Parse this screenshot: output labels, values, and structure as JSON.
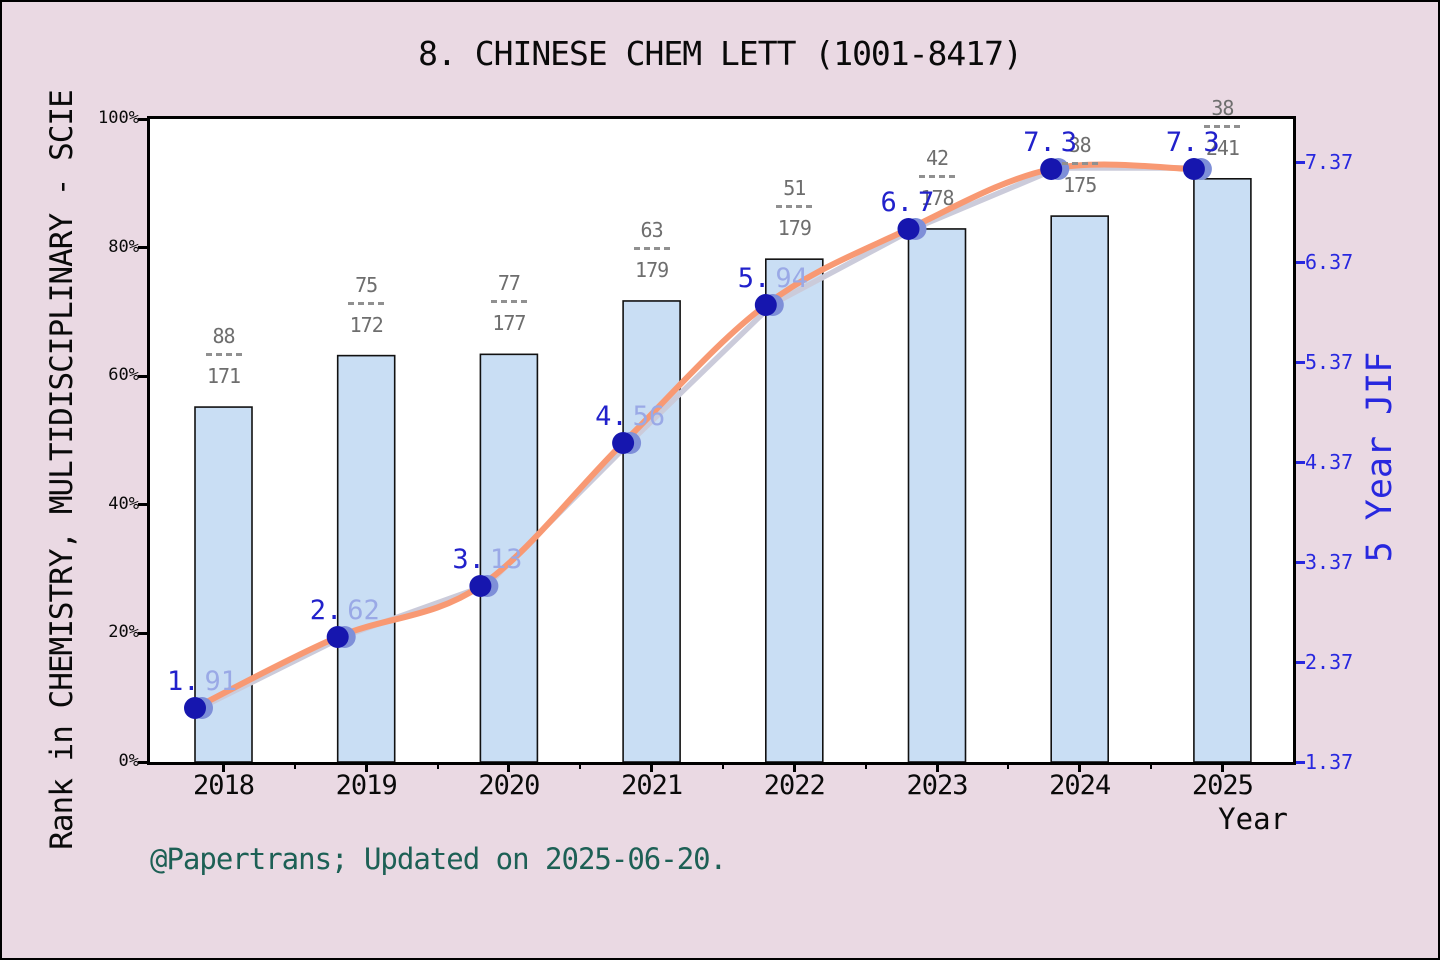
{
  "chart_data": {
    "type": "bar+line",
    "title": "8. CHINESE CHEM LETT (1001-8417)",
    "xlabel": "Year",
    "categories": [
      "2018",
      "2019",
      "2020",
      "2021",
      "2022",
      "2023",
      "2024",
      "2025"
    ],
    "left_axis": {
      "label": "Rank in CHEMISTRY, MULTIDISCIPLINARY - SCIE",
      "ticks": [
        "0%",
        "20%",
        "40%",
        "60%",
        "80%",
        "100%"
      ],
      "range_percent": [
        0,
        100
      ],
      "grid": false
    },
    "right_axis": {
      "label": "5 Year JIF",
      "ticks": [
        "1.37",
        "2.37",
        "3.37",
        "4.37",
        "5.37",
        "6.37",
        "7.37"
      ],
      "range": [
        1.37,
        7.37
      ]
    },
    "series": [
      {
        "name": "rank-percentile-bars",
        "type": "bar",
        "values_percent_est": [
          55.2,
          63.2,
          63.4,
          71.7,
          78.2,
          82.9,
          84.9,
          90.7
        ],
        "rank_labels": [
          {
            "numerator": "88",
            "denominator": "171"
          },
          {
            "numerator": "75",
            "denominator": "172"
          },
          {
            "numerator": "77",
            "denominator": "177"
          },
          {
            "numerator": "63",
            "denominator": "179"
          },
          {
            "numerator": "51",
            "denominator": "179"
          },
          {
            "numerator": "42",
            "denominator": "178"
          },
          {
            "numerator": "38",
            "denominator": "175"
          },
          {
            "numerator": "38",
            "denominator": "241"
          }
        ]
      },
      {
        "name": "five-year-jif-line",
        "type": "line",
        "values": [
          1.91,
          2.62,
          3.13,
          4.56,
          5.94,
          6.7,
          7.3,
          7.3
        ],
        "point_labels": [
          {
            "dark": "1.",
            "light": "91"
          },
          {
            "dark": "2.",
            "light": "62"
          },
          {
            "dark": "3.",
            "light": "13"
          },
          {
            "dark": "4.",
            "light": "56"
          },
          {
            "dark": "5.",
            "light": "94"
          },
          {
            "dark": "6.",
            "dark2": "7"
          },
          {
            "dark": "7.",
            "dark2": "3"
          },
          {
            "dark": "7.",
            "dark2": "3"
          }
        ]
      }
    ],
    "annotations": {
      "footer": "@Papertrans; Updated on 2025-06-20."
    },
    "legend": null,
    "colors": {
      "background": "#ead9e3",
      "plot_background": "#ffffff",
      "bar_fill": "#c9def4",
      "bar_edge": "#111111",
      "line_orange": "#f89973",
      "line_gray": "#cbcbda",
      "marker_navy": "#1616ae",
      "marker_light": "#7e8fd8",
      "point_label_navy": "#2121cb",
      "point_label_light": "#9aa9e6",
      "right_axis_blue": "#2828df",
      "rank_label_gray": "#6e6e6e",
      "footer_teal": "#1d6055"
    }
  }
}
